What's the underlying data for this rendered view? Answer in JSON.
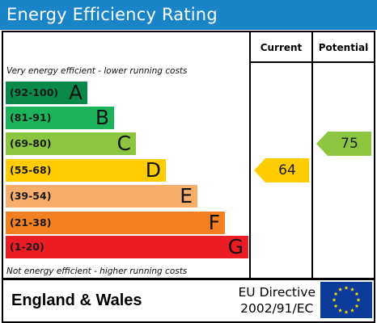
{
  "title": "Energy Efficiency Rating",
  "columns": {
    "current": "Current",
    "potential": "Potential"
  },
  "notes": {
    "top": "Very energy efficient - lower running costs",
    "bottom": "Not energy efficient - higher running costs"
  },
  "bands": [
    {
      "range": "(92-100)",
      "letter": "A",
      "color": "#0a8a4a"
    },
    {
      "range": "(81-91)",
      "letter": "B",
      "color": "#1cb35a"
    },
    {
      "range": "(69-80)",
      "letter": "C",
      "color": "#8cc540"
    },
    {
      "range": "(55-68)",
      "letter": "D",
      "color": "#ffcc00"
    },
    {
      "range": "(39-54)",
      "letter": "E",
      "color": "#f7ad6b"
    },
    {
      "range": "(21-38)",
      "letter": "F",
      "color": "#f28021"
    },
    {
      "range": "(1-20)",
      "letter": "G",
      "color": "#ec1c24"
    }
  ],
  "ratings": {
    "current": {
      "value": "64",
      "band": "D",
      "color": "#ffcc00"
    },
    "potential": {
      "value": "75",
      "band": "C",
      "color": "#8cc540"
    }
  },
  "footer": {
    "country": "England & Wales",
    "directive_line1": "EU Directive",
    "directive_line2": "2002/91/EC",
    "flag": "eu-flag"
  }
}
